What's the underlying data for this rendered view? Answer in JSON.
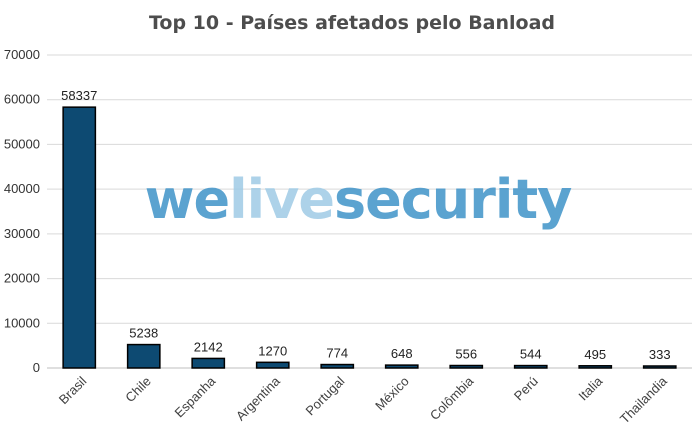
{
  "chart_data": {
    "type": "bar",
    "title": "Top 10 - Países afetados pelo Banload",
    "categories": [
      "Brasil",
      "Chile",
      "Espanha",
      "Argentina",
      "Portugal",
      "México",
      "Colômbia",
      "Perú",
      "Italia",
      "Thailandia"
    ],
    "values": [
      58337,
      5238,
      2142,
      1270,
      774,
      648,
      556,
      544,
      495,
      333
    ],
    "xlabel": "",
    "ylabel": "",
    "ylim": [
      0,
      70000
    ],
    "yticks": [
      0,
      10000,
      20000,
      30000,
      40000,
      50000,
      60000,
      70000
    ],
    "grid": true,
    "data_labels": true,
    "bar_color": "#0d4a72",
    "bar_border_color": "#000000",
    "grid_color": "#d9d9d9"
  },
  "watermark": {
    "part1": "we",
    "part2": "live",
    "part3": "security",
    "color_main": "#3f93c8",
    "color_light": "#9fcbe6"
  }
}
